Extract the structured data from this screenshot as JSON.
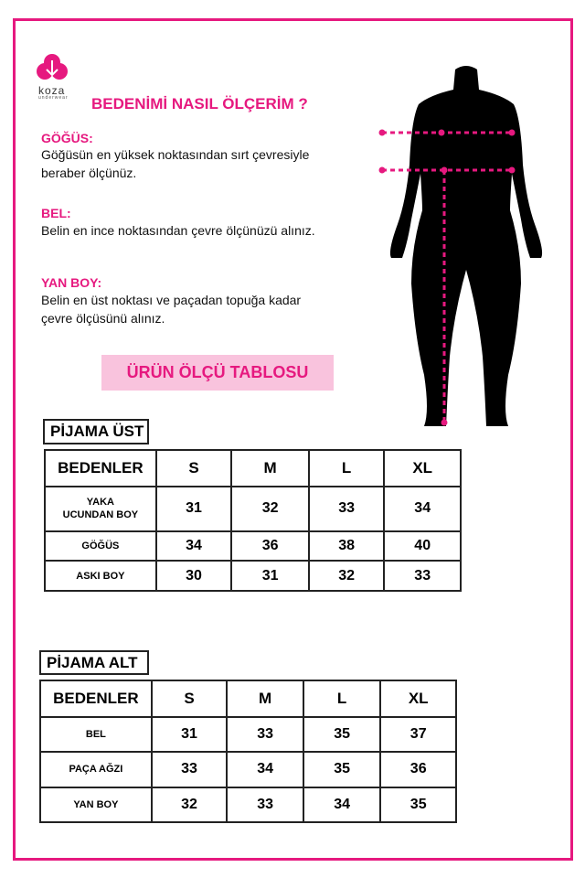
{
  "brand": {
    "name": "koza",
    "tagline": "underwear",
    "color": "#e6197f"
  },
  "title": "BEDENİMİ NASIL ÖLÇERİM ?",
  "sections": [
    {
      "heading": "GÖĞÜS:",
      "lines": [
        "Göğüsün en yüksek noktasından sırt çevresiyle",
        "beraber ölçünüz."
      ]
    },
    {
      "heading": "BEL:",
      "lines": [
        "Belin en ince noktasından çevre ölçünüzü alınız."
      ]
    },
    {
      "heading": "YAN BOY:",
      "lines": [
        "Belin en üst noktası ve paçadan topuğa kadar",
        "çevre ölçüsünü alınız."
      ]
    }
  ],
  "banner": "ÜRÜN ÖLÇÜ TABLOSU",
  "tables": [
    {
      "label": "PİJAMA ÜST",
      "header": [
        "BEDENLER",
        "S",
        "M",
        "L",
        "XL"
      ],
      "rows": [
        [
          "YAKA UCUNDAN BOY",
          "31",
          "32",
          "33",
          "34"
        ],
        [
          "GÖĞÜS",
          "34",
          "36",
          "38",
          "40"
        ],
        [
          "ASKI BOY",
          "30",
          "31",
          "32",
          "33"
        ]
      ]
    },
    {
      "label": "PİJAMA ALT",
      "header": [
        "BEDENLER",
        "S",
        "M",
        "L",
        "XL"
      ],
      "rows": [
        [
          "BEL",
          "31",
          "33",
          "35",
          "37"
        ],
        [
          "PAÇA AĞZI",
          "33",
          "34",
          "35",
          "36"
        ],
        [
          "YAN BOY",
          "32",
          "33",
          "34",
          "35"
        ]
      ]
    }
  ]
}
